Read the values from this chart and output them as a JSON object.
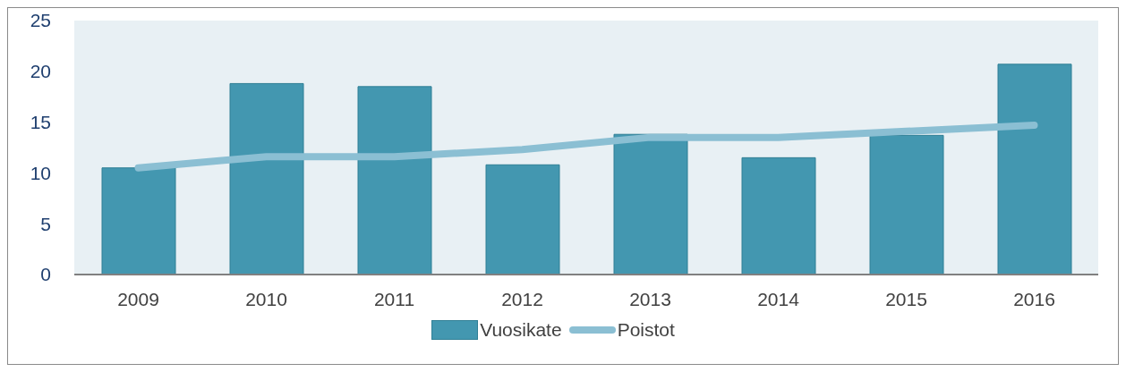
{
  "chart_data": {
    "type": "bar",
    "categories": [
      "2009",
      "2010",
      "2011",
      "2012",
      "2013",
      "2014",
      "2015",
      "2016"
    ],
    "series": [
      {
        "name": "Vuosikate",
        "color": "#4397b0",
        "values": [
          10.5,
          18.8,
          18.5,
          10.8,
          13.8,
          11.5,
          13.7,
          20.7
        ]
      },
      {
        "name": "Poistot",
        "type": "line",
        "color": "#8bbfd3",
        "values": [
          10.5,
          11.6,
          11.6,
          12.3,
          13.5,
          13.5,
          14.1,
          14.7
        ]
      }
    ],
    "ylim": [
      0,
      25
    ],
    "yticks": [
      0,
      5,
      10,
      15,
      20,
      25
    ],
    "legend": "bottom"
  }
}
